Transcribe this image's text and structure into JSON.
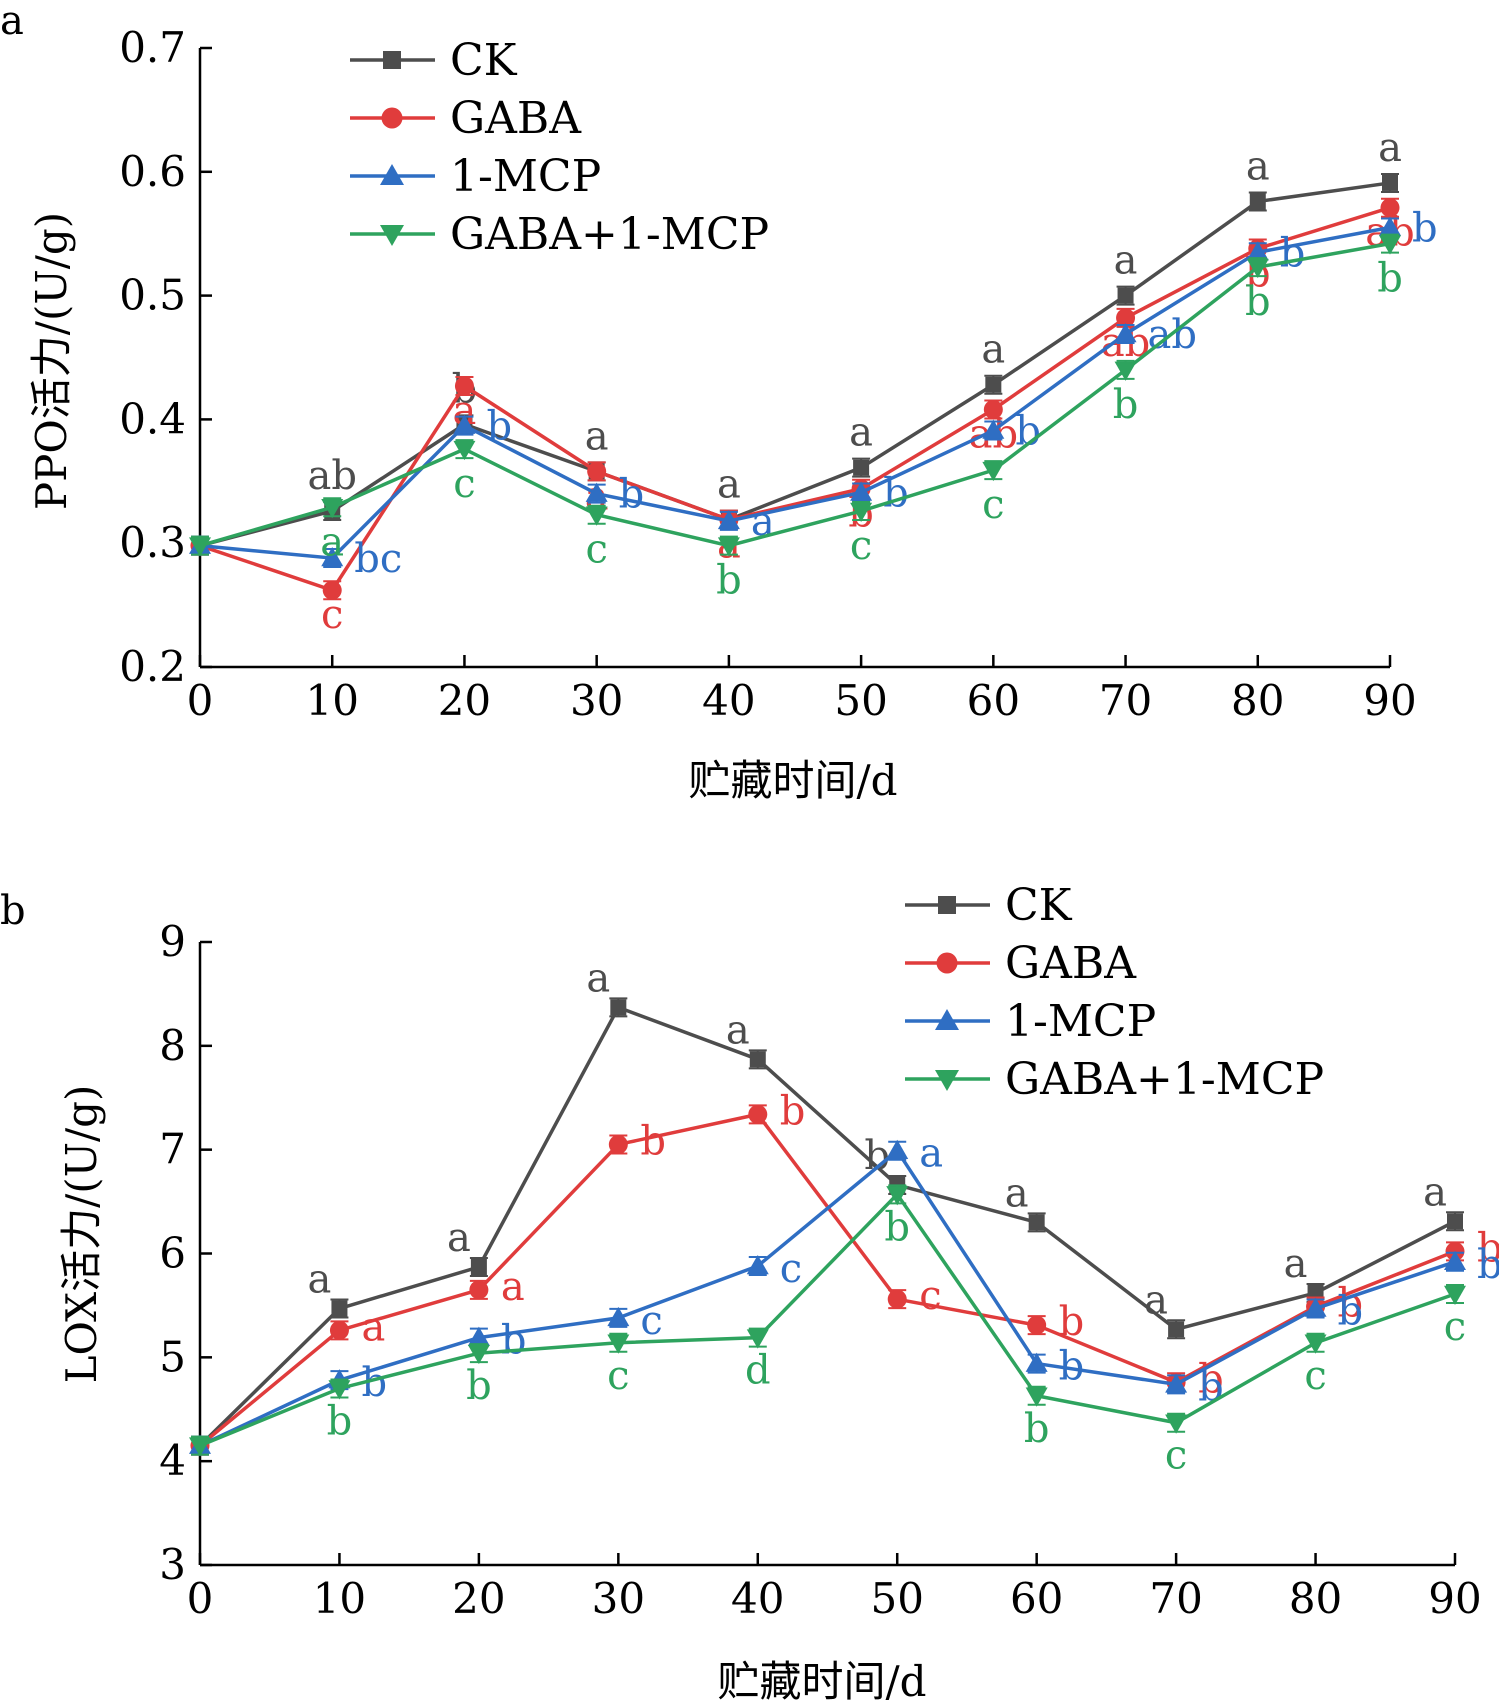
{
  "colors": {
    "CK": "#4d4d4d",
    "GABA": "#e03c3c",
    "1-MCP": "#2f6ec3",
    "GABA+1-MCP": "#2ea35e",
    "axis": "#000000"
  },
  "chart_data": [
    {
      "panel_label": "a",
      "type": "line",
      "ylabel": "PPO活力/(U/g)",
      "xlabel": "贮藏时间/d",
      "x": [
        0,
        10,
        20,
        30,
        40,
        50,
        60,
        70,
        80,
        90
      ],
      "xticks": [
        "0",
        "10",
        "20",
        "30",
        "40",
        "50",
        "60",
        "70",
        "80",
        "90"
      ],
      "ylim": [
        0.2,
        0.7
      ],
      "yticks": [
        "0.2",
        "0.3",
        "0.4",
        "0.5",
        "0.6",
        "0.7"
      ],
      "legend_position": "top-left",
      "grid": false,
      "series": [
        {
          "name": "CK",
          "marker": "square",
          "values": [
            0.298,
            0.326,
            0.396,
            0.358,
            0.319,
            0.361,
            0.428,
            0.5,
            0.576,
            0.591
          ],
          "labels": [
            "",
            "ab",
            "b",
            "a",
            "a",
            "a",
            "a",
            "a",
            "a",
            "a"
          ]
        },
        {
          "name": "GABA",
          "marker": "circle",
          "values": [
            0.298,
            0.262,
            0.427,
            0.358,
            0.319,
            0.344,
            0.408,
            0.482,
            0.538,
            0.571
          ],
          "labels": [
            "",
            "c",
            "a",
            "a",
            "a",
            "b",
            "ab",
            "ab",
            "b",
            "ab"
          ]
        },
        {
          "name": "1-MCP",
          "marker": "triangle-up",
          "values": [
            0.298,
            0.288,
            0.395,
            0.34,
            0.318,
            0.341,
            0.391,
            0.469,
            0.535,
            0.555
          ],
          "labels": [
            "",
            "bc",
            "b",
            "b",
            "a",
            "b",
            "b",
            "ab",
            "b",
            "b"
          ]
        },
        {
          "name": "GABA+1-MCP",
          "marker": "triangle-down",
          "values": [
            0.298,
            0.329,
            0.376,
            0.323,
            0.298,
            0.326,
            0.359,
            0.44,
            0.523,
            0.542
          ],
          "labels": [
            "",
            "a",
            "c",
            "c",
            "b",
            "c",
            "c",
            "b",
            "b",
            "b"
          ]
        }
      ]
    },
    {
      "panel_label": "b",
      "type": "line",
      "ylabel": "LOX活力/(U/g)",
      "xlabel": "贮藏时间/d",
      "x": [
        0,
        10,
        20,
        30,
        40,
        50,
        60,
        70,
        80,
        90
      ],
      "xticks": [
        "0",
        "10",
        "20",
        "30",
        "40",
        "50",
        "60",
        "70",
        "80",
        "90"
      ],
      "ylim": [
        3,
        9
      ],
      "yticks": [
        "3",
        "4",
        "5",
        "6",
        "7",
        "8",
        "9"
      ],
      "legend_position": "top-right",
      "grid": false,
      "series": [
        {
          "name": "CK",
          "marker": "square",
          "values": [
            4.15,
            5.47,
            5.87,
            8.37,
            7.87,
            6.66,
            6.3,
            5.27,
            5.62,
            6.31
          ],
          "labels": [
            "",
            "a",
            "a",
            "a",
            "a",
            "b",
            "a",
            "a",
            "a",
            "a"
          ]
        },
        {
          "name": "GABA",
          "marker": "circle",
          "values": [
            4.15,
            5.26,
            5.65,
            7.05,
            7.34,
            5.56,
            5.31,
            4.76,
            5.49,
            6.02
          ],
          "labels": [
            "",
            "a",
            "a",
            "b",
            "b",
            "c",
            "b",
            "b",
            "b",
            "b"
          ]
        },
        {
          "name": "1-MCP",
          "marker": "triangle-up",
          "values": [
            4.15,
            4.78,
            5.19,
            5.38,
            5.88,
            6.99,
            4.94,
            4.74,
            5.47,
            5.92
          ],
          "labels": [
            "",
            "b",
            "b",
            "c",
            "c",
            "a",
            "b",
            "b",
            "b",
            "b"
          ]
        },
        {
          "name": "GABA+1-MCP",
          "marker": "triangle-down",
          "values": [
            4.15,
            4.7,
            5.04,
            5.14,
            5.19,
            6.57,
            4.63,
            4.37,
            5.14,
            5.61
          ],
          "labels": [
            "",
            "b",
            "b",
            "c",
            "d",
            "b",
            "b",
            "c",
            "c",
            "c"
          ]
        }
      ]
    }
  ]
}
